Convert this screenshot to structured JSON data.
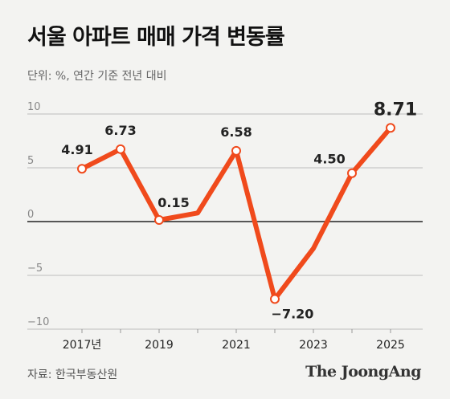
{
  "header": {
    "title": "서울 아파트 매매 가격 변동률",
    "subtitle": "단위: %, 연간 기준 전년 대비"
  },
  "footer": {
    "source": "자료: 한국부동산원",
    "brand": "The JoongAng"
  },
  "colors": {
    "line": "#f04a1c",
    "zero_line": "#222222",
    "grid": "#bdbdbd",
    "background": "#f3f3f1"
  },
  "chart_data": {
    "type": "line",
    "title": "서울 아파트 매매 가격 변동률",
    "subtitle": "단위: %, 연간 기준 전년 대비",
    "xlabel": "",
    "ylabel": "",
    "ylim": [
      -10,
      10
    ],
    "yticks": [
      10,
      5,
      0,
      -5,
      -10
    ],
    "ytick_labels": [
      "10",
      "5",
      "0",
      "−5",
      "−10"
    ],
    "x": [
      2017,
      2018,
      2019,
      2020,
      2021,
      2022,
      2023,
      2024,
      2025
    ],
    "xtick_positions": [
      2017,
      2019,
      2021,
      2023,
      2025
    ],
    "xtick_labels": [
      "2017년",
      "2019",
      "2021",
      "2023",
      "2025"
    ],
    "series": [
      {
        "values": [
          4.91,
          6.73,
          0.15,
          0.8,
          6.58,
          -7.2,
          -2.5,
          4.5,
          8.71
        ]
      }
    ],
    "data_labels": [
      {
        "index": 0,
        "text": "4.91"
      },
      {
        "index": 1,
        "text": "6.73"
      },
      {
        "index": 2,
        "text": "0.15"
      },
      {
        "index": 4,
        "text": "6.58"
      },
      {
        "index": 5,
        "text": "−7.20"
      },
      {
        "index": 7,
        "text": "4.50"
      },
      {
        "index": 8,
        "text": "8.71"
      }
    ],
    "grid": true
  }
}
